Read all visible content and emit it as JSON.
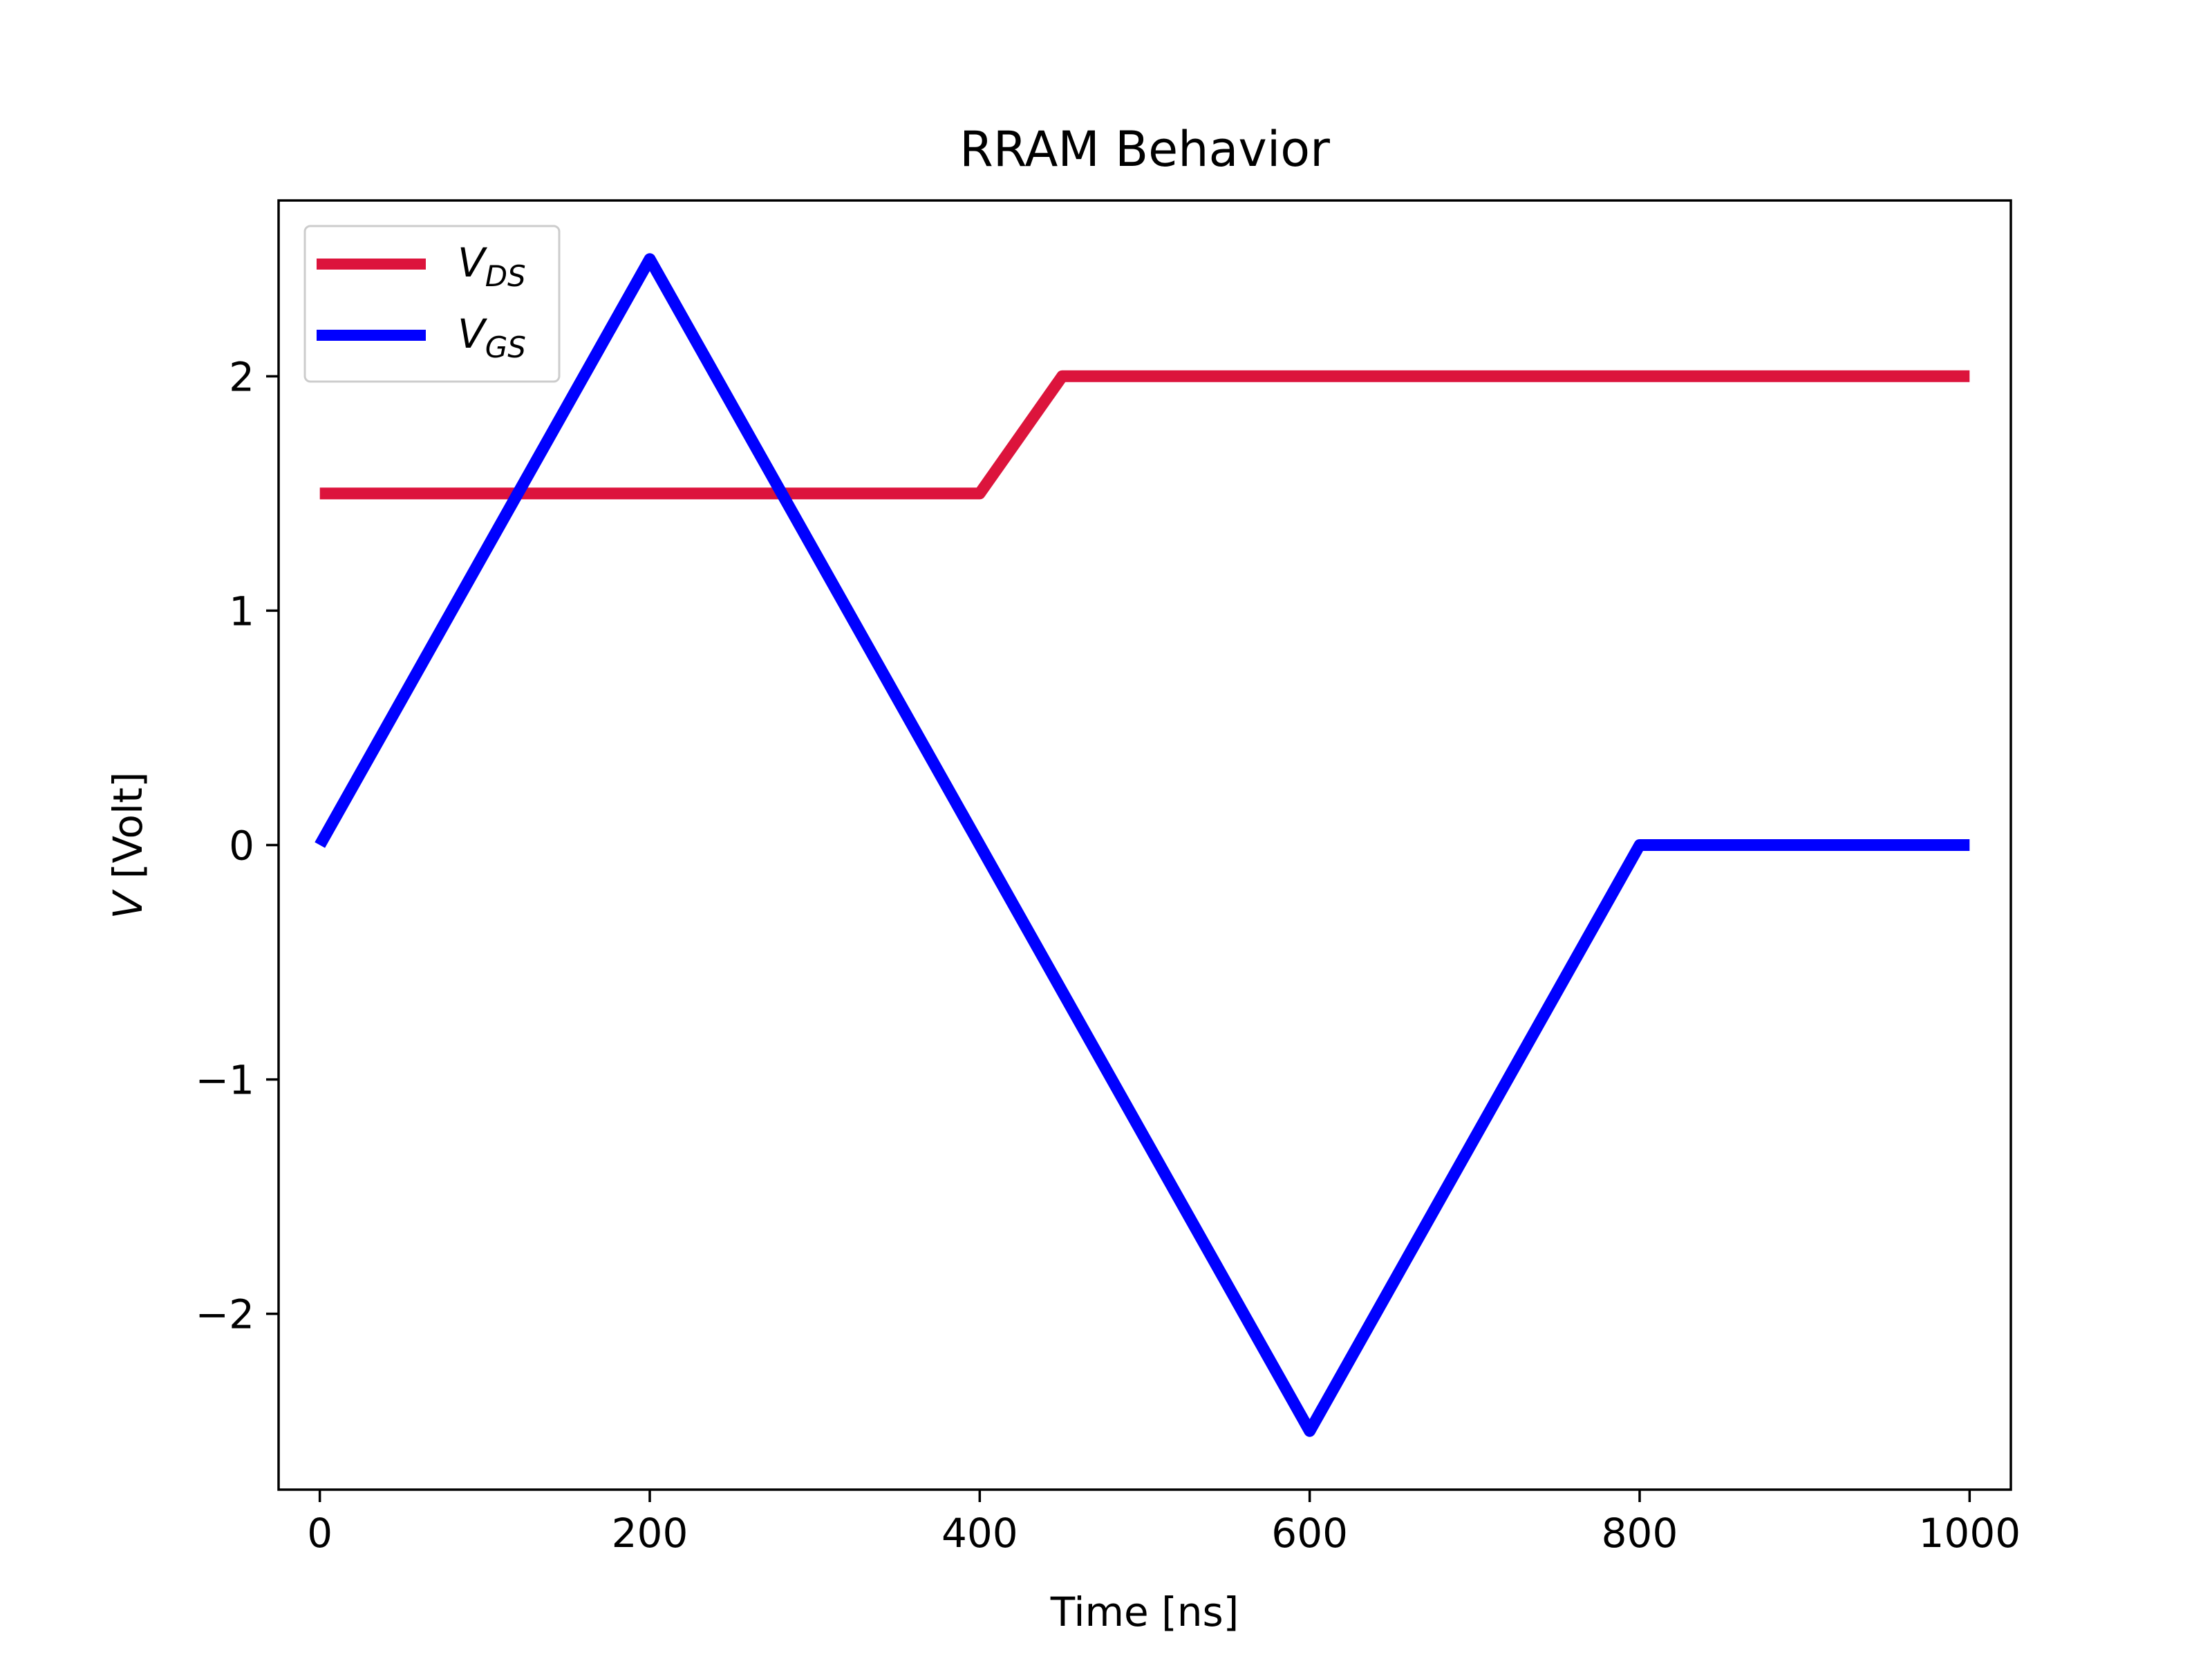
{
  "chart_data": {
    "type": "line",
    "title": "RRAM Behavior",
    "xlabel": "Time [ns]",
    "ylabel_var": "V",
    "ylabel_unit": " [Volt]",
    "xlim": [
      -25,
      1025
    ],
    "ylim": [
      -2.75,
      2.75
    ],
    "xticks": [
      0,
      200,
      400,
      600,
      800,
      1000
    ],
    "xtick_labels": [
      "0",
      "200",
      "400",
      "600",
      "800",
      "1000"
    ],
    "yticks": [
      -2,
      -1,
      0,
      1,
      2
    ],
    "ytick_labels": [
      "−2",
      "−1",
      "0",
      "1",
      "2"
    ],
    "grid": false,
    "legend_position": "top-left",
    "series": [
      {
        "name_main": "V",
        "name_sub": "DS",
        "color": "#dc143c",
        "x": [
          0,
          400,
          450,
          1000
        ],
        "y": [
          1.5,
          1.5,
          2.0,
          2.0
        ]
      },
      {
        "name_main": "V",
        "name_sub": "GS",
        "color": "#0000ff",
        "x": [
          0,
          200,
          600,
          800,
          1000
        ],
        "y": [
          0.0,
          2.5,
          -2.5,
          0.0,
          0.0
        ]
      }
    ]
  }
}
